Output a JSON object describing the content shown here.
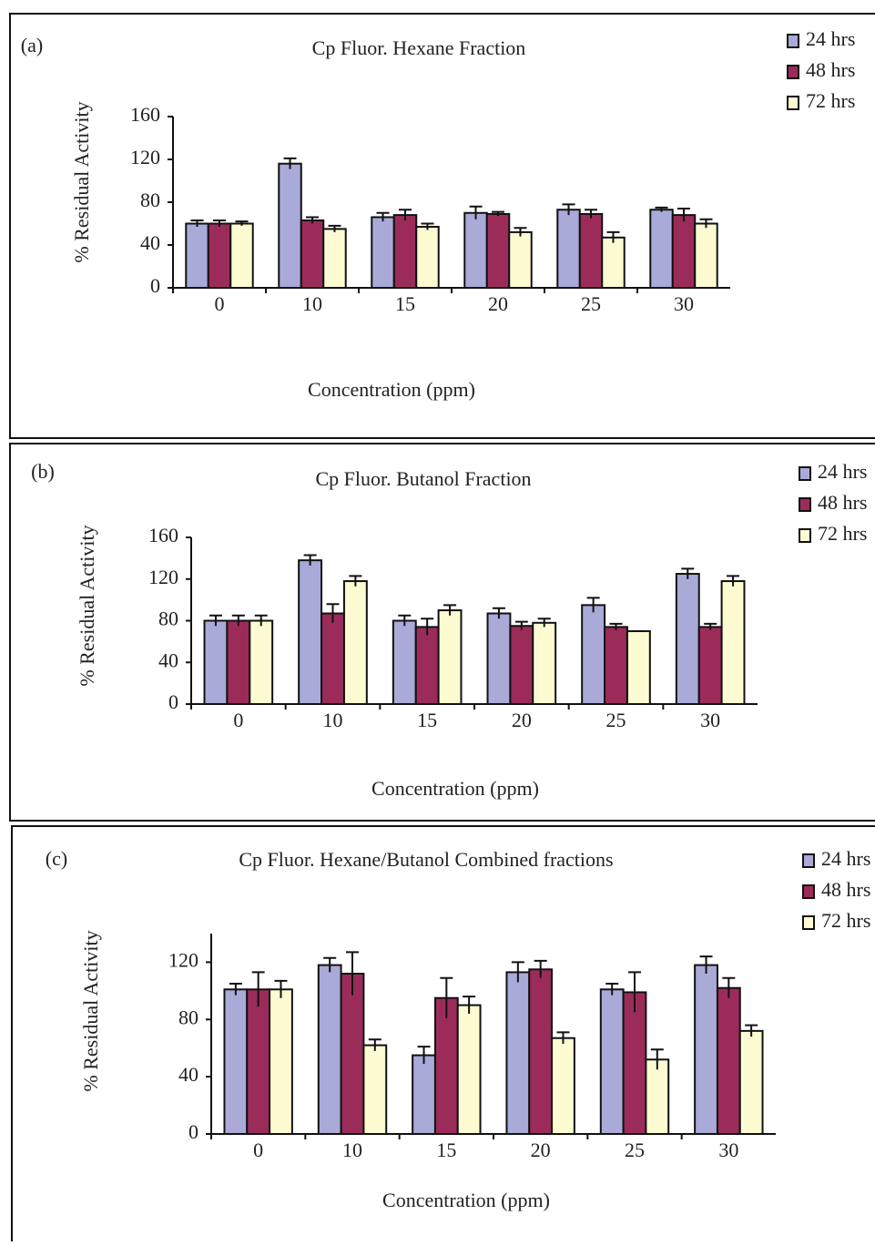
{
  "chart_data": [
    {
      "type": "bar",
      "label": "(a)",
      "title": "Cp Fluor. Hexane Fraction",
      "x_label": "Concentration (ppm)",
      "y_label": "% Residual Activity",
      "categories": [
        "0",
        "10",
        "15",
        "20",
        "25",
        "30"
      ],
      "series": [
        {
          "name": "24 hrs",
          "color": "#aaaad8",
          "values": [
            60,
            116,
            66,
            70,
            73,
            73
          ],
          "errors": [
            3,
            5,
            4,
            6,
            5,
            2
          ]
        },
        {
          "name": "48 hrs",
          "color": "#9b2c5a",
          "values": [
            60,
            63,
            68,
            69,
            69,
            68
          ],
          "errors": [
            3,
            3,
            5,
            2,
            4,
            6
          ]
        },
        {
          "name": "72 hrs",
          "color": "#fdfbd2",
          "values": [
            60,
            55,
            57,
            52,
            47,
            60
          ],
          "errors": [
            2,
            3,
            3,
            4,
            5,
            4
          ]
        }
      ],
      "ylim": [
        0,
        160
      ],
      "yticks": [
        0,
        40,
        80,
        120,
        160
      ]
    },
    {
      "type": "bar",
      "label": "(b)",
      "title": "Cp Fluor. Butanol Fraction",
      "x_label": "Concentration (ppm)",
      "y_label": "% Residual Activity",
      "categories": [
        "0",
        "10",
        "15",
        "20",
        "25",
        "30"
      ],
      "series": [
        {
          "name": "24 hrs",
          "color": "#aaaad8",
          "values": [
            80,
            138,
            80,
            87,
            95,
            125
          ],
          "errors": [
            5,
            5,
            5,
            5,
            7,
            5
          ]
        },
        {
          "name": "48 hrs",
          "color": "#9b2c5a",
          "values": [
            80,
            87,
            74,
            75,
            74,
            74
          ],
          "errors": [
            5,
            9,
            8,
            4,
            3,
            3
          ]
        },
        {
          "name": "72 hrs",
          "color": "#fdfbd2",
          "values": [
            80,
            118,
            90,
            78,
            70,
            118
          ],
          "errors": [
            5,
            5,
            5,
            4,
            0,
            5
          ]
        }
      ],
      "ylim": [
        0,
        160
      ],
      "yticks": [
        0,
        40,
        80,
        120,
        160
      ]
    },
    {
      "type": "bar",
      "label": "(c)",
      "title": "Cp Fluor. Hexane/Butanol Combined fractions",
      "x_label": "Concentration (ppm)",
      "y_label": "% Residual Activity",
      "categories": [
        "0",
        "10",
        "15",
        "20",
        "25",
        "30"
      ],
      "series": [
        {
          "name": "24 hrs",
          "color": "#aaaad8",
          "values": [
            101,
            118,
            55,
            113,
            101,
            118
          ],
          "errors": [
            4,
            5,
            6,
            7,
            4,
            6
          ]
        },
        {
          "name": "48 hrs",
          "color": "#9b2c5a",
          "values": [
            101,
            112,
            95,
            115,
            99,
            102
          ],
          "errors": [
            12,
            15,
            14,
            6,
            14,
            7
          ]
        },
        {
          "name": "72 hrs",
          "color": "#fdfbd2",
          "values": [
            101,
            62,
            90,
            67,
            52,
            72
          ],
          "errors": [
            6,
            4,
            6,
            4,
            7,
            4
          ]
        }
      ],
      "ylim": [
        0,
        140
      ],
      "yticks": [
        0,
        40,
        80,
        120
      ]
    }
  ]
}
